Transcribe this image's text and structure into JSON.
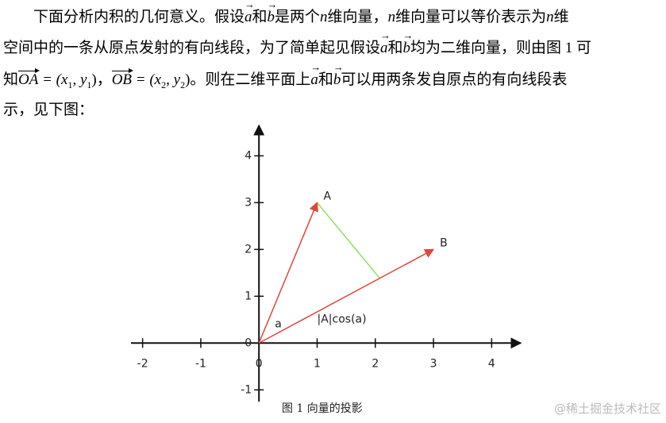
{
  "paragraph": {
    "line1": [
      "下面分析内积的几何意义。假设",
      "a",
      "和",
      "b",
      "是两个",
      "n",
      "维向量，",
      "n",
      "维向量可以等价表示为",
      "n",
      "维"
    ],
    "line2": [
      "空间中的一条从原点发射的有向线段，为了简单起见假设",
      "a",
      "和",
      "b",
      "均为二维向量，则由图 1 可"
    ],
    "line3": [
      "知",
      "OA",
      " = (x",
      "1",
      ", y",
      "1",
      ")，",
      "OB",
      " = (x",
      "2",
      ", y",
      "2",
      ")。则在二维平面上",
      "a",
      "和",
      "b",
      "可以用两条发自原点的有向线段表"
    ],
    "line4": [
      "示，见下图："
    ]
  },
  "figure": {
    "xlim": [
      -2.2,
      4.5
    ],
    "ylim": [
      -1.25,
      4.65
    ],
    "xticks": [
      -2,
      -1,
      0,
      1,
      2,
      3,
      4
    ],
    "yticks": [
      -1,
      0,
      1,
      2,
      3,
      4
    ],
    "vectors": [
      {
        "name": "A",
        "x": 1,
        "y": 3,
        "color": "#e0463c"
      },
      {
        "name": "B",
        "x": 3,
        "y": 2,
        "color": "#e0463c"
      }
    ],
    "projection_color": "#8fe05a",
    "angle_label": "a",
    "projection_label": "|A|cos(a)",
    "caption": "图 1  向量的投影"
  },
  "watermark": "@稀土掘金技术社区"
}
